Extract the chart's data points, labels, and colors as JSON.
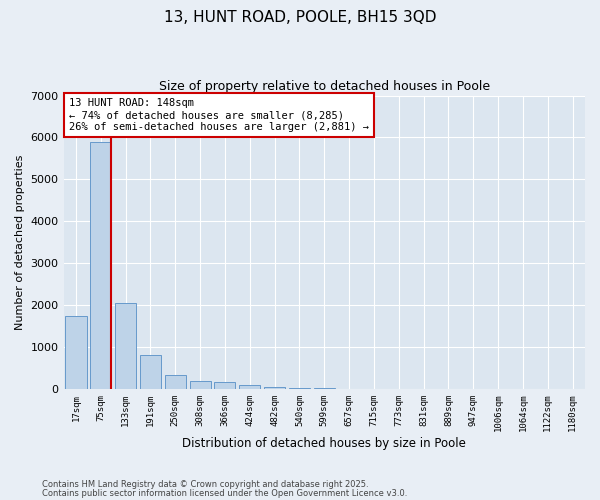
{
  "title_line1": "13, HUNT ROAD, POOLE, BH15 3QD",
  "title_line2": "Size of property relative to detached houses in Poole",
  "xlabel": "Distribution of detached houses by size in Poole",
  "ylabel": "Number of detached properties",
  "categories": [
    "17sqm",
    "75sqm",
    "133sqm",
    "191sqm",
    "250sqm",
    "308sqm",
    "366sqm",
    "424sqm",
    "482sqm",
    "540sqm",
    "599sqm",
    "657sqm",
    "715sqm",
    "773sqm",
    "831sqm",
    "889sqm",
    "947sqm",
    "1006sqm",
    "1064sqm",
    "1122sqm",
    "1180sqm"
  ],
  "values": [
    1750,
    5900,
    2050,
    820,
    330,
    200,
    155,
    100,
    55,
    30,
    15,
    10,
    5,
    0,
    0,
    0,
    0,
    0,
    0,
    0,
    0
  ],
  "bar_color": "#bed3e8",
  "bar_edge_color": "#6699cc",
  "vline_color": "#cc0000",
  "annotation_text": "13 HUNT ROAD: 148sqm\n← 74% of detached houses are smaller (8,285)\n26% of semi-detached houses are larger (2,881) →",
  "annotation_box_facecolor": "white",
  "annotation_box_edgecolor": "#cc0000",
  "background_color": "#dce6f0",
  "fig_background_color": "#e8eef5",
  "ylim": [
    0,
    7000
  ],
  "yticks": [
    0,
    1000,
    2000,
    3000,
    4000,
    5000,
    6000,
    7000
  ],
  "footer_line1": "Contains HM Land Registry data © Crown copyright and database right 2025.",
  "footer_line2": "Contains public sector information licensed under the Open Government Licence v3.0."
}
